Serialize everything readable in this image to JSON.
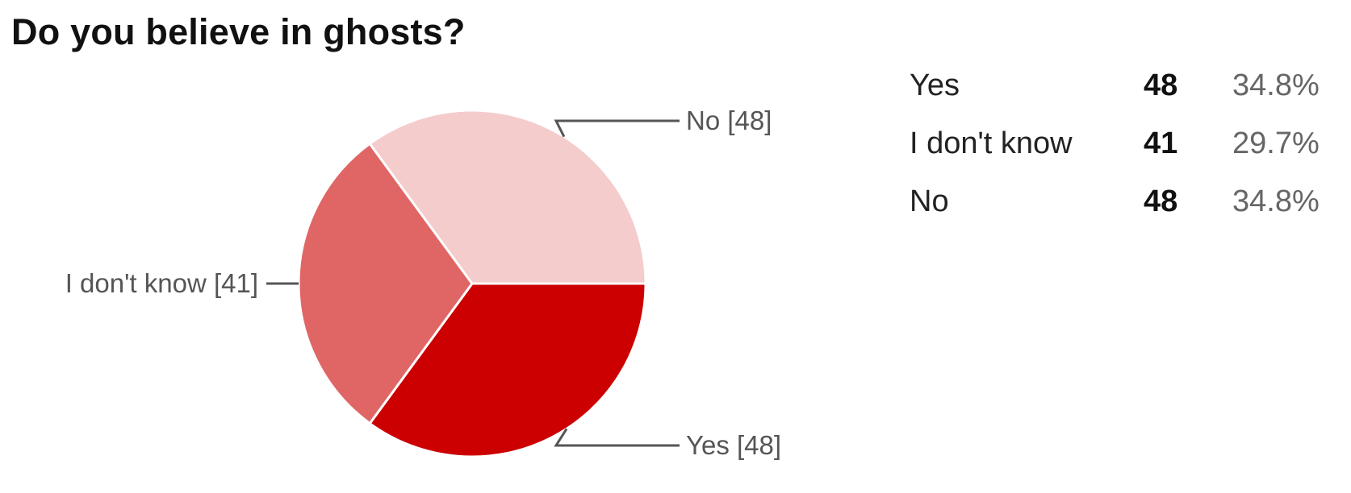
{
  "question": {
    "title": "Do you believe in ghosts?"
  },
  "chart_data": {
    "type": "pie",
    "title": "Do you believe in ghosts?",
    "slices": [
      {
        "label": "Yes",
        "value": 48,
        "percent": "34.8%",
        "callout": "Yes [48]",
        "color": "#cc0000"
      },
      {
        "label": "I don't know",
        "value": 41,
        "percent": "29.7%",
        "callout": "I don't know [41]",
        "color": "#e06666"
      },
      {
        "label": "No",
        "value": 48,
        "percent": "34.8%",
        "callout": "No [48]",
        "color": "#f4cccc"
      }
    ],
    "start_direction": "3 o'clock",
    "direction": "clockwise",
    "slice_border_color": "#ffffff",
    "callout_line_color": "#555555"
  },
  "summary_table": {
    "rows": [
      {
        "label": "Yes",
        "count": "48",
        "percent": "34.8%"
      },
      {
        "label": "I don't know",
        "count": "41",
        "percent": "29.7%"
      },
      {
        "label": "No",
        "count": "48",
        "percent": "34.8%"
      }
    ]
  }
}
